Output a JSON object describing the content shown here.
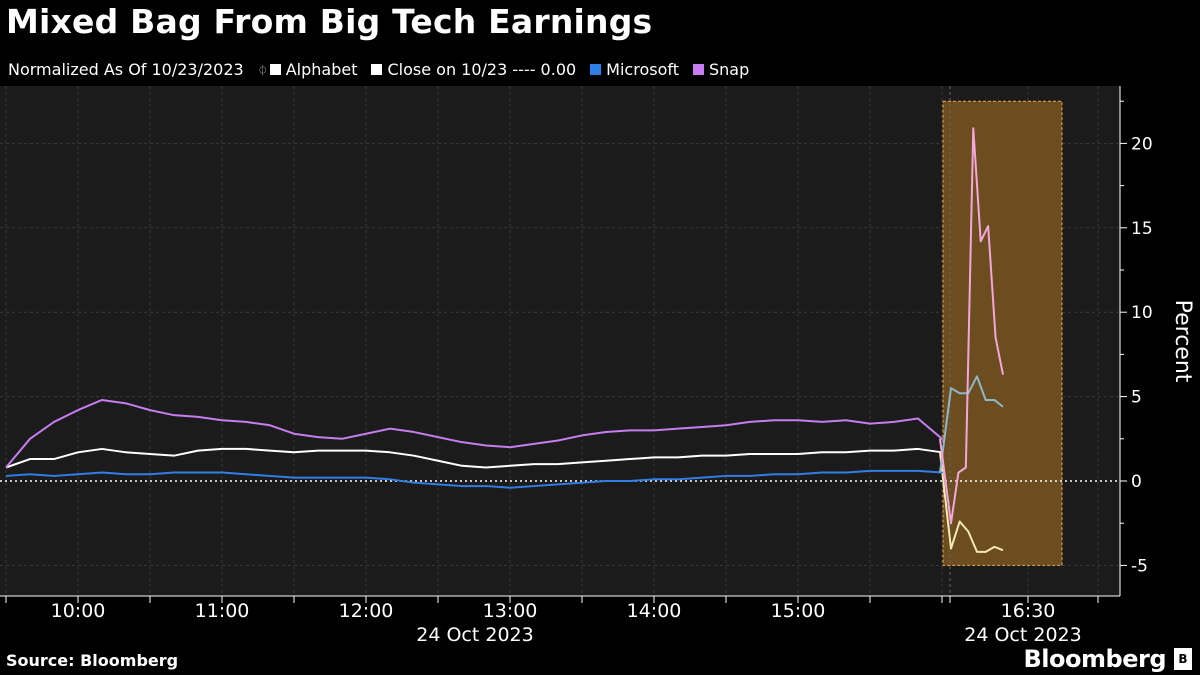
{
  "title": "Mixed Bag From Big Tech Earnings",
  "legend": {
    "normalized": "Normalized As Of 10/23/2023",
    "items": [
      {
        "label": "Alphabet",
        "color": "#ffffff"
      },
      {
        "label": "Close on 10/23 ---- 0.00",
        "color": "#ffffff"
      },
      {
        "label": "Microsoft",
        "color": "#2f7fe6"
      },
      {
        "label": "Snap",
        "color": "#c77cf0"
      }
    ]
  },
  "footer": {
    "source": "Source: Bloomberg",
    "brand": "Bloomberg"
  },
  "colors": {
    "alphabet": "#ffffff",
    "microsoft": "#2f7fe6",
    "snap": "#c77cf0",
    "alphabet_after": "#f6e7b5",
    "microsoft_after": "#8eb7c9",
    "snap_after": "#f4a6d8",
    "highlight_fill": "#6b4d1f",
    "highlight_border": "#f0a94a",
    "plot_bg": "#1b1b1b"
  },
  "chart_data": {
    "type": "line",
    "ylabel": "Percent",
    "ylim": [
      -6.5,
      23.5
    ],
    "yticks": [
      -5,
      0,
      5,
      10,
      15,
      20
    ],
    "xtick_labels": [
      "10:00",
      "11:00",
      "12:00",
      "13:00",
      "14:00",
      "15:00",
      "16:30"
    ],
    "date_labels": [
      "24 Oct 2023",
      "24 Oct 2023"
    ],
    "after_hours_highlight": {
      "y_range": [
        -5,
        22.5
      ]
    },
    "x": [
      "09:30",
      "09:40",
      "09:50",
      "10:00",
      "10:10",
      "10:20",
      "10:30",
      "10:40",
      "10:50",
      "11:00",
      "11:10",
      "11:20",
      "11:30",
      "11:40",
      "11:50",
      "12:00",
      "12:10",
      "12:20",
      "12:30",
      "12:40",
      "12:50",
      "13:00",
      "13:10",
      "13:20",
      "13:30",
      "13:40",
      "13:50",
      "14:00",
      "14:10",
      "14:20",
      "14:30",
      "14:40",
      "14:50",
      "15:00",
      "15:10",
      "15:20",
      "15:30",
      "15:40",
      "15:50",
      "16:00"
    ],
    "series": [
      {
        "name": "Alphabet",
        "values": [
          0.8,
          1.3,
          1.3,
          1.7,
          1.9,
          1.7,
          1.6,
          1.5,
          1.8,
          1.9,
          1.9,
          1.8,
          1.7,
          1.8,
          1.8,
          1.8,
          1.7,
          1.5,
          1.2,
          0.9,
          0.8,
          0.9,
          1.0,
          1.0,
          1.1,
          1.2,
          1.3,
          1.4,
          1.4,
          1.5,
          1.5,
          1.6,
          1.6,
          1.6,
          1.7,
          1.7,
          1.8,
          1.8,
          1.9,
          1.7
        ],
        "after_hours": [
          -4.0,
          -2.4,
          -3.0,
          -4.2,
          -4.2,
          -3.9,
          -4.1
        ]
      },
      {
        "name": "Microsoft",
        "values": [
          0.3,
          0.4,
          0.3,
          0.4,
          0.5,
          0.4,
          0.4,
          0.5,
          0.5,
          0.5,
          0.4,
          0.3,
          0.2,
          0.2,
          0.2,
          0.2,
          0.1,
          -0.1,
          -0.2,
          -0.3,
          -0.3,
          -0.4,
          -0.3,
          -0.2,
          -0.1,
          0.0,
          0.0,
          0.1,
          0.1,
          0.2,
          0.3,
          0.3,
          0.4,
          0.4,
          0.5,
          0.5,
          0.6,
          0.6,
          0.6,
          0.5
        ],
        "after_hours": [
          5.5,
          5.2,
          5.2,
          6.2,
          4.8,
          4.8,
          4.4
        ]
      },
      {
        "name": "Snap",
        "values": [
          0.8,
          2.5,
          3.5,
          4.2,
          4.8,
          4.6,
          4.2,
          3.9,
          3.8,
          3.6,
          3.5,
          3.3,
          2.8,
          2.6,
          2.5,
          2.8,
          3.1,
          2.9,
          2.6,
          2.3,
          2.1,
          2.0,
          2.2,
          2.4,
          2.7,
          2.9,
          3.0,
          3.0,
          3.1,
          3.2,
          3.3,
          3.5,
          3.6,
          3.6,
          3.5,
          3.6,
          3.4,
          3.5,
          3.7,
          2.5
        ],
        "after_hours": [
          -2.5,
          0.5,
          0.8,
          20.9,
          14.2,
          15.1,
          8.5,
          6.3
        ]
      }
    ]
  }
}
